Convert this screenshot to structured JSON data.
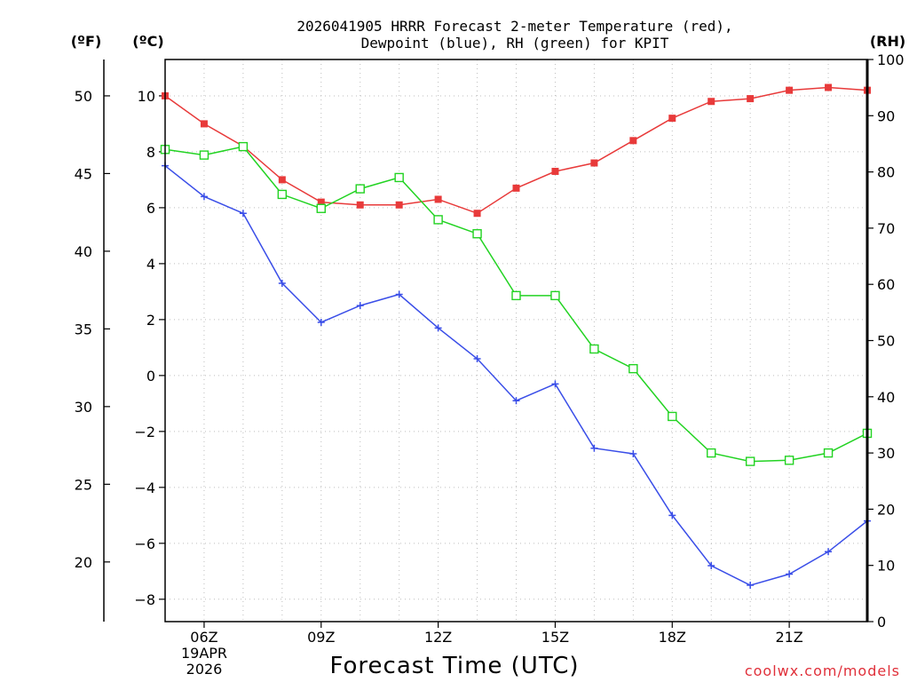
{
  "chart_data": {
    "type": "line",
    "title_line1": "2026041905 HRRR Forecast 2-meter Temperature (red),",
    "title_line2": "Dewpoint (blue), RH (green) for KPIT",
    "xlabel": "Forecast Time (UTC)",
    "credit": "coolwx.com/models",
    "units": {
      "fahrenheit": "(ºF)",
      "celsius": "(ºC)",
      "rh": "(RH)"
    },
    "date_labels": {
      "day": "19APR",
      "year": "2026"
    },
    "x_hours": [
      5,
      6,
      7,
      8,
      9,
      10,
      11,
      12,
      13,
      14,
      15,
      16,
      17,
      18,
      19,
      20,
      21,
      22,
      23
    ],
    "x_ticks": [
      {
        "hour": 6,
        "label": "06Z"
      },
      {
        "hour": 9,
        "label": "09Z"
      },
      {
        "hour": 12,
        "label": "12Z"
      },
      {
        "hour": 15,
        "label": "15Z"
      },
      {
        "hour": 18,
        "label": "18Z"
      },
      {
        "hour": 21,
        "label": "21Z"
      }
    ],
    "xlim": [
      5,
      23
    ],
    "celsius_ylim": [
      -8.8,
      11.3
    ],
    "celsius_ticks": [
      "10",
      "8",
      "6",
      "4",
      "2",
      "0",
      "−2",
      "−4",
      "−6",
      "−8"
    ],
    "fahrenheit_ticks": [
      "50",
      "45",
      "40",
      "35",
      "30",
      "25",
      "20"
    ],
    "rh_ylim": [
      0,
      100
    ],
    "rh_ticks": [
      "100",
      "90",
      "80",
      "70",
      "60",
      "50",
      "40",
      "30",
      "20",
      "10",
      "0"
    ],
    "series": [
      {
        "name": "Temperature",
        "axis": "celsius",
        "color": "#e83a3a",
        "marker": "filled-square",
        "values": [
          10.0,
          9.0,
          8.2,
          7.0,
          6.2,
          6.1,
          6.1,
          6.3,
          5.8,
          6.7,
          7.3,
          7.6,
          8.4,
          9.2,
          9.8,
          9.9,
          10.2,
          10.3,
          10.2
        ]
      },
      {
        "name": "Dewpoint",
        "axis": "celsius",
        "color": "#3a4ee8",
        "marker": "plus",
        "values": [
          7.5,
          6.4,
          5.8,
          3.3,
          1.9,
          2.5,
          2.9,
          1.7,
          0.6,
          -0.9,
          -0.3,
          -2.6,
          -2.8,
          -5.0,
          -6.8,
          -7.5,
          -7.1,
          -6.3,
          -5.2
        ]
      },
      {
        "name": "RH",
        "axis": "rh",
        "color": "#22d322",
        "marker": "open-square",
        "values": [
          84,
          83,
          84.5,
          76,
          73.5,
          77,
          79,
          71.5,
          69,
          58,
          58,
          48.5,
          45,
          36.5,
          30,
          28.5,
          28.7,
          30,
          33.5
        ]
      }
    ]
  }
}
